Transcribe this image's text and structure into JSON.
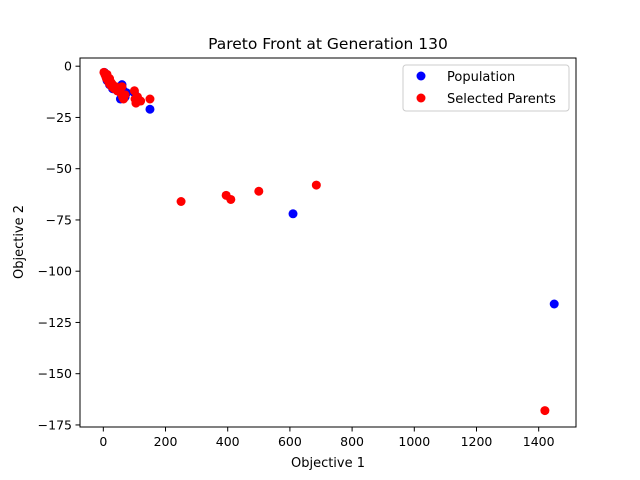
{
  "chart_data": {
    "type": "scatter",
    "title": "Pareto Front at Generation 130",
    "xlabel": "Objective 1",
    "ylabel": "Objective 2",
    "xlim": [
      -75,
      1520
    ],
    "ylim": [
      -176,
      4
    ],
    "xticks": [
      0,
      200,
      400,
      600,
      800,
      1000,
      1200,
      1400
    ],
    "yticks": [
      0,
      -25,
      -50,
      -75,
      -100,
      -125,
      -150,
      -175
    ],
    "xtick_labels": [
      "0",
      "200",
      "400",
      "600",
      "800",
      "1000",
      "1200",
      "1400"
    ],
    "ytick_labels": [
      "0",
      "−25",
      "−50",
      "−75",
      "−100",
      "−125",
      "−150",
      "−175"
    ],
    "grid": false,
    "legend_position": "top-right",
    "series": [
      {
        "name": "Population",
        "color": "#0000ff",
        "x": [
          3,
          8,
          12,
          20,
          30,
          45,
          55,
          60,
          65,
          70,
          75,
          100,
          110,
          150,
          610,
          1450
        ],
        "y": [
          -3,
          -5,
          -7,
          -9,
          -11,
          -12,
          -16,
          -9,
          -12,
          -15,
          -13,
          -13,
          -17,
          -21,
          -72,
          -116
        ]
      },
      {
        "name": "Selected Parents",
        "color": "#ff0000",
        "x": [
          2,
          5,
          8,
          10,
          12,
          15,
          18,
          20,
          22,
          25,
          28,
          30,
          35,
          40,
          45,
          50,
          55,
          60,
          62,
          65,
          70,
          100,
          102,
          105,
          110,
          120,
          150,
          250,
          395,
          410,
          500,
          685,
          1420
        ],
        "y": [
          -3,
          -4,
          -5,
          -6,
          -4,
          -7,
          -8,
          -6,
          -9,
          -8,
          -10,
          -9,
          -11,
          -10,
          -12,
          -11,
          -13,
          -10,
          -15,
          -16,
          -14,
          -12,
          -16,
          -18,
          -15,
          -17,
          -16,
          -66,
          -63,
          -65,
          -61,
          -58,
          -168
        ]
      }
    ]
  }
}
